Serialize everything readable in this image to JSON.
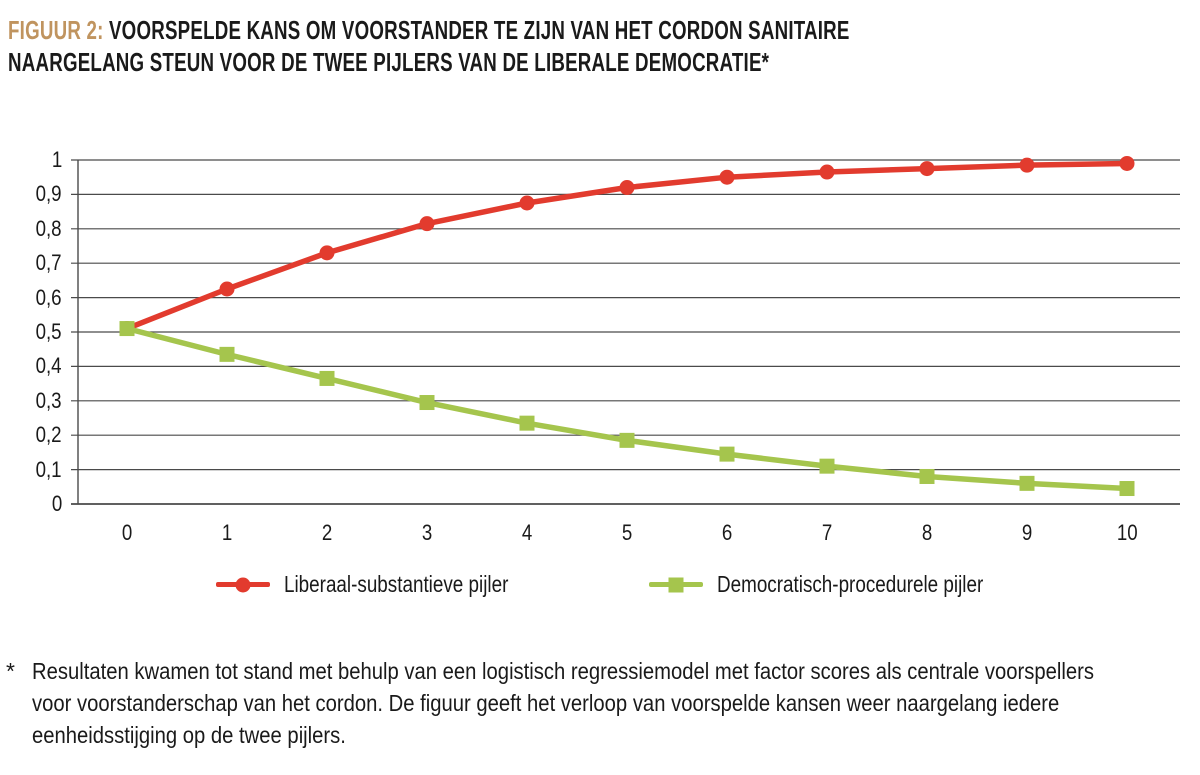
{
  "title": {
    "prefix": "FIGUUR 2:",
    "line1": "VOORSPELDE KANS OM VOORSTANDER TE ZIJN VAN HET CORDON SANITAIRE",
    "line2": "NAARGELANG STEUN VOOR DE TWEE PIJLERS VAN DE LIBERALE DEMOCRATIE*"
  },
  "colors": {
    "background": "#ffffff",
    "text": "#1a1a1a",
    "title_prefix": "#c0945f",
    "grid": "#4a4a4a",
    "red_series": "#e23b2e",
    "green_series": "#a5c54d"
  },
  "chart_data": {
    "type": "line",
    "title": "",
    "xlabel": "",
    "ylabel": "",
    "x": [
      0,
      1,
      2,
      3,
      4,
      5,
      6,
      7,
      8,
      9,
      10
    ],
    "x_labels": [
      "0",
      "1",
      "2",
      "3",
      "4",
      "5",
      "6",
      "7",
      "8",
      "9",
      "10"
    ],
    "y_ticks": [
      0,
      0.1,
      0.2,
      0.3,
      0.4,
      0.5,
      0.6,
      0.7,
      0.8,
      0.9,
      1
    ],
    "y_tick_labels": [
      "0",
      "0,1",
      "0,2",
      "0,3",
      "0,4",
      "0,5",
      "0,6",
      "0,7",
      "0,8",
      "0,9",
      "1"
    ],
    "ylim": [
      0,
      1
    ],
    "grid": "horizontal",
    "legend_position": "bottom",
    "series": [
      {
        "name": "Liberaal-substantieve pijler",
        "marker": "circle",
        "color": "#e23b2e",
        "values": [
          0.51,
          0.625,
          0.73,
          0.815,
          0.875,
          0.92,
          0.95,
          0.965,
          0.975,
          0.985,
          0.99
        ]
      },
      {
        "name": "Democratisch-procedurele pijler",
        "marker": "square",
        "color": "#a5c54d",
        "values": [
          0.51,
          0.435,
          0.365,
          0.295,
          0.235,
          0.185,
          0.145,
          0.11,
          0.08,
          0.06,
          0.045
        ]
      }
    ]
  },
  "footnote": {
    "marker": "*",
    "lines": [
      "Resultaten kwamen tot stand met behulp van een logistisch regressiemodel met factor scores als centrale voorspellers",
      "voor voorstanderschap van het cordon. De figuur geeft het verloop van voorspelde kansen weer naargelang iedere",
      "eenheidsstijging op de twee pijlers."
    ]
  }
}
